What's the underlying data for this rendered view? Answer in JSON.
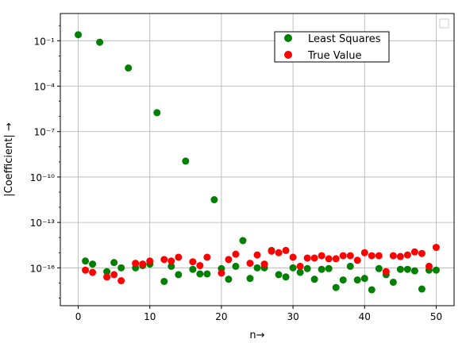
{
  "chart_data": {
    "type": "scatter",
    "xlabel": "n→",
    "ylabel": "|Coefficient| →",
    "xlim": [
      -2.5,
      52.5
    ],
    "ylim_log10": [
      -18.5,
      0.8
    ],
    "log_y": true,
    "grid": true,
    "legend_position": "top-right",
    "x_ticks": [
      0,
      10,
      20,
      30,
      40,
      50
    ],
    "y_ticks": [
      {
        "exp": -1,
        "label": "10⁻¹"
      },
      {
        "exp": -4,
        "label": "10⁻⁴"
      },
      {
        "exp": -7,
        "label": "10⁻⁷"
      },
      {
        "exp": -10,
        "label": "10⁻¹⁰"
      },
      {
        "exp": -13,
        "label": "10⁻¹³"
      },
      {
        "exp": -16,
        "label": "10⁻¹⁶"
      }
    ],
    "series": [
      {
        "name": "Least Squares",
        "color": "#008000",
        "points": [
          [
            0,
            -0.6
          ],
          [
            1,
            -15.55
          ],
          [
            2,
            -15.75
          ],
          [
            3,
            -1.1
          ],
          [
            4,
            -16.25
          ],
          [
            5,
            -15.65
          ],
          [
            6,
            -16.0
          ],
          [
            7,
            -2.8
          ],
          [
            8,
            -16.0
          ],
          [
            9,
            -15.85
          ],
          [
            10,
            -15.75
          ],
          [
            11,
            -5.75
          ],
          [
            12,
            -16.9
          ],
          [
            13,
            -15.9
          ],
          [
            14,
            -16.45
          ],
          [
            15,
            -8.95
          ],
          [
            16,
            -16.1
          ],
          [
            17,
            -16.4
          ],
          [
            18,
            -16.4
          ],
          [
            19,
            -11.5
          ],
          [
            20,
            -16.05
          ],
          [
            21,
            -16.75
          ],
          [
            22,
            -15.9
          ],
          [
            23,
            -14.2
          ],
          [
            24,
            -16.7
          ],
          [
            25,
            -16.0
          ],
          [
            26,
            -16.0
          ],
          [
            27,
            -14.85
          ],
          [
            28,
            -16.45
          ],
          [
            29,
            -16.6
          ],
          [
            30,
            -16.0
          ],
          [
            31,
            -16.3
          ],
          [
            32,
            -16.05
          ],
          [
            33,
            -16.75
          ],
          [
            34,
            -16.1
          ],
          [
            35,
            -16.05
          ],
          [
            36,
            -17.3
          ],
          [
            37,
            -16.8
          ],
          [
            38,
            -15.9
          ],
          [
            39,
            -16.8
          ],
          [
            40,
            -16.7
          ],
          [
            41,
            -17.45
          ],
          [
            42,
            -16.05
          ],
          [
            43,
            -16.45
          ],
          [
            44,
            -16.95
          ],
          [
            45,
            -16.1
          ],
          [
            46,
            -16.1
          ],
          [
            47,
            -16.2
          ],
          [
            48,
            -17.4
          ],
          [
            49,
            -16.15
          ],
          [
            50,
            -16.15
          ]
        ]
      },
      {
        "name": "True Value",
        "color": "#ff0000",
        "points": [
          [
            1,
            -16.15
          ],
          [
            2,
            -16.3
          ],
          [
            4,
            -16.6
          ],
          [
            5,
            -16.45
          ],
          [
            6,
            -16.85
          ],
          [
            8,
            -15.7
          ],
          [
            9,
            -15.75
          ],
          [
            10,
            -15.55
          ],
          [
            12,
            -15.45
          ],
          [
            13,
            -15.55
          ],
          [
            14,
            -15.3
          ],
          [
            16,
            -15.6
          ],
          [
            17,
            -15.85
          ],
          [
            18,
            -15.3
          ],
          [
            20,
            -16.35
          ],
          [
            21,
            -15.45
          ],
          [
            22,
            -15.1
          ],
          [
            24,
            -15.7
          ],
          [
            25,
            -15.15
          ],
          [
            26,
            -15.75
          ],
          [
            27,
            -14.9
          ],
          [
            28,
            -15.0
          ],
          [
            29,
            -14.85
          ],
          [
            30,
            -15.3
          ],
          [
            31,
            -15.9
          ],
          [
            32,
            -15.35
          ],
          [
            33,
            -15.35
          ],
          [
            34,
            -15.2
          ],
          [
            35,
            -15.4
          ],
          [
            36,
            -15.4
          ],
          [
            37,
            -15.2
          ],
          [
            38,
            -15.2
          ],
          [
            39,
            -15.5
          ],
          [
            40,
            -15.0
          ],
          [
            41,
            -15.2
          ],
          [
            42,
            -15.2
          ],
          [
            43,
            -16.25
          ],
          [
            44,
            -15.2
          ],
          [
            45,
            -15.25
          ],
          [
            46,
            -15.15
          ],
          [
            47,
            -14.95
          ],
          [
            48,
            -15.05
          ],
          [
            49,
            -15.9
          ],
          [
            50,
            -14.65
          ]
        ]
      }
    ]
  }
}
